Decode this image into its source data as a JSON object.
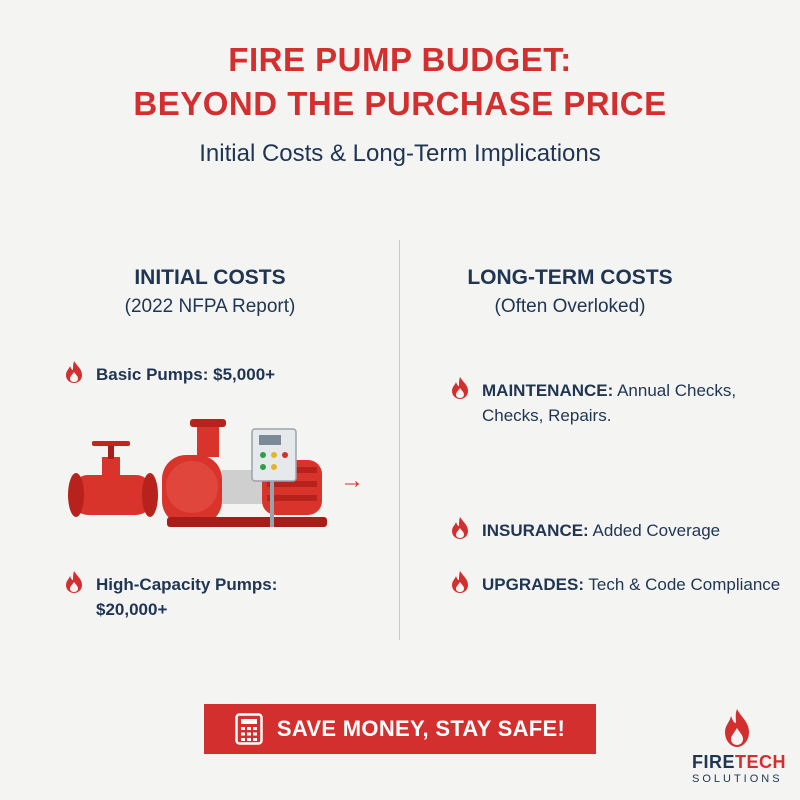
{
  "header": {
    "title_line1": "FIRE PUMP BUDGET:",
    "title_line2": "BEYOND THE PURCHASE PRICE",
    "subtitle": "Initial Costs & Long-Term Implications"
  },
  "initial_costs": {
    "heading": "INITIAL COSTS",
    "subheading": "(2022 NFPA Report)",
    "items": [
      {
        "label": "Basic Pumps: $5,000+"
      },
      {
        "label_line1": "High-Capacity Pumps:",
        "label_line2": "$20,000+"
      }
    ]
  },
  "long_term_costs": {
    "heading": "LONG-TERM COSTS",
    "subheading": "(Often Overloked)",
    "items": [
      {
        "bold": "MAINTENANCE:",
        "text": " Annual Checks,",
        "text_line2": "Checks, Repairs."
      },
      {
        "bold": "INSURANCE:",
        "text": " Added Coverage"
      },
      {
        "bold": "UPGRADES:",
        "text": " Tech & Code Compliance"
      }
    ]
  },
  "arrow": "→",
  "cta": {
    "label": "SAVE MONEY, STAY SAFE!"
  },
  "logo": {
    "name_part1": "FIRE",
    "name_part2": "TECH",
    "tagline": "SOLUTIONS"
  },
  "colors": {
    "accent": "#d32f2f",
    "navy": "#1f3552",
    "background": "#f4f4f3"
  },
  "icons": [
    "flame-icon",
    "calculator-icon",
    "fire-pump-illustration",
    "arrow-right-icon"
  ]
}
